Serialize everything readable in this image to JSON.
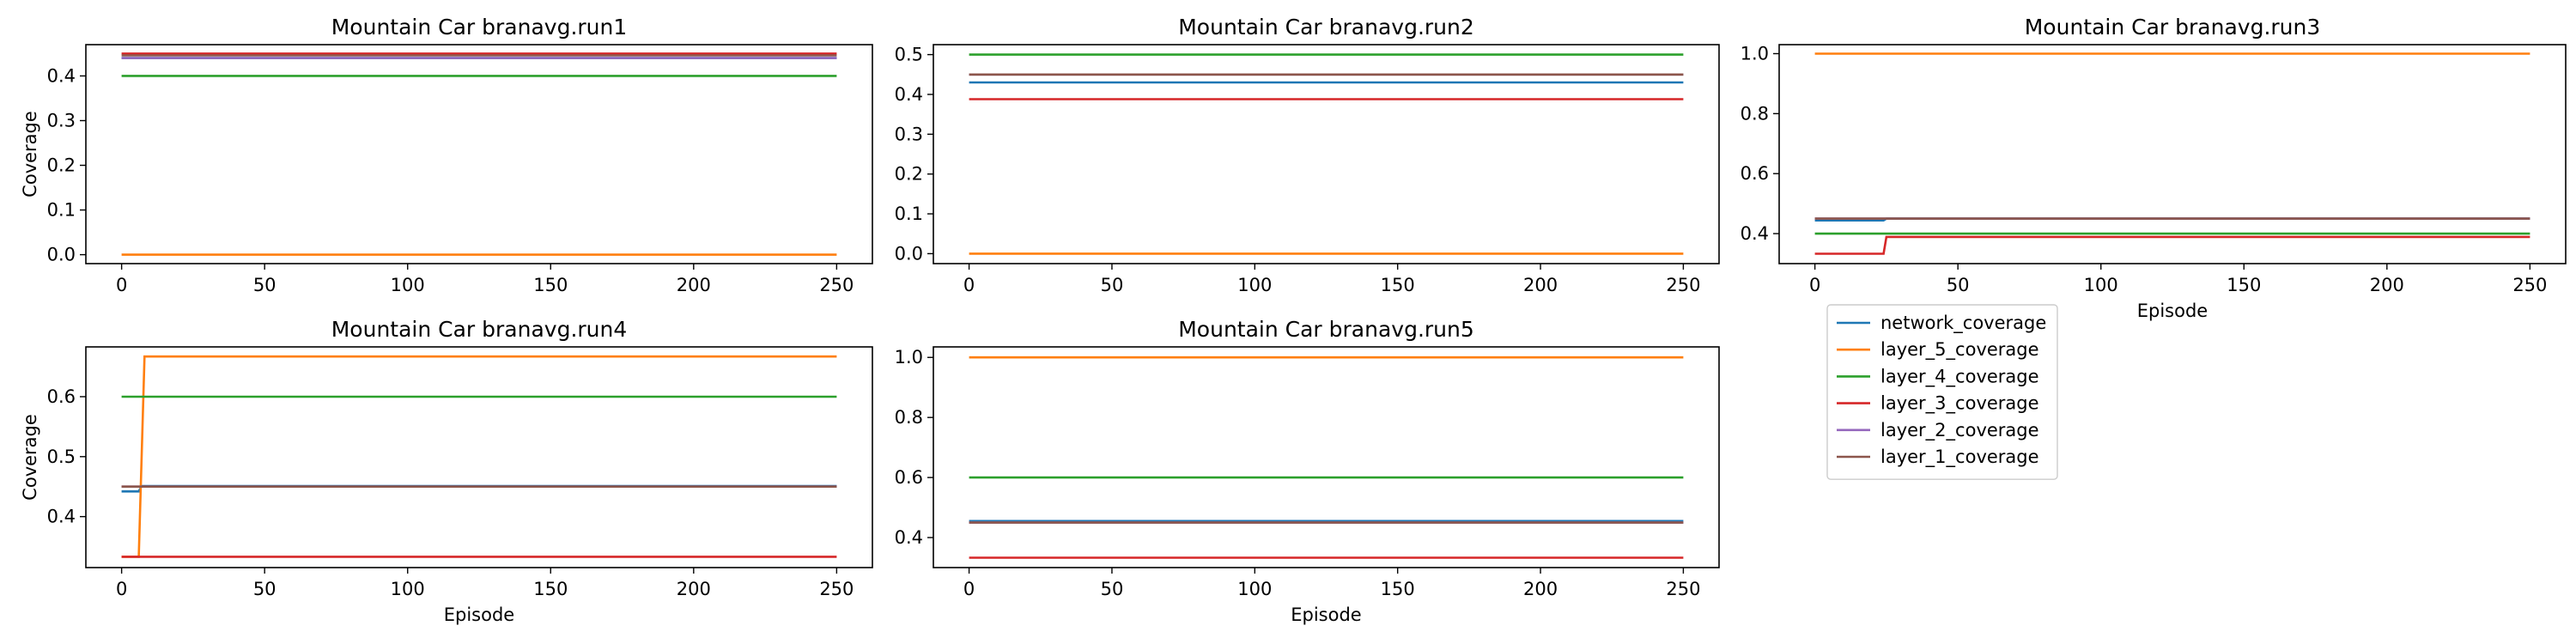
{
  "chart_data": [
    {
      "type": "line",
      "title": "Mountain Car branavg.run1",
      "xlabel": "",
      "ylabel": "Coverage",
      "xlim": [
        -12.5,
        262.5
      ],
      "ylim": [
        -0.02,
        0.47
      ],
      "xticks": [
        0,
        50,
        100,
        150,
        200,
        250
      ],
      "yticks": [
        0.0,
        0.1,
        0.2,
        0.3,
        0.4
      ],
      "series": [
        {
          "name": "network_coverage",
          "points": [
            [
              0,
              0.44
            ],
            [
              250,
              0.44
            ]
          ]
        },
        {
          "name": "layer_5_coverage",
          "points": [
            [
              0,
              0.0
            ],
            [
              250,
              0.0
            ]
          ]
        },
        {
          "name": "layer_4_coverage",
          "points": [
            [
              0,
              0.4
            ],
            [
              250,
              0.4
            ]
          ]
        },
        {
          "name": "layer_3_coverage",
          "points": [
            [
              0,
              0.45
            ],
            [
              250,
              0.45
            ]
          ]
        },
        {
          "name": "layer_2_coverage",
          "points": [
            [
              0,
              0.44
            ],
            [
              250,
              0.44
            ]
          ]
        },
        {
          "name": "layer_1_coverage",
          "points": [
            [
              0,
              0.446
            ],
            [
              250,
              0.446
            ]
          ]
        }
      ]
    },
    {
      "type": "line",
      "title": "Mountain Car branavg.run2",
      "xlabel": "",
      "ylabel": "",
      "xlim": [
        -12.5,
        262.5
      ],
      "ylim": [
        -0.025,
        0.525
      ],
      "xticks": [
        0,
        50,
        100,
        150,
        200,
        250
      ],
      "yticks": [
        0.0,
        0.1,
        0.2,
        0.3,
        0.4,
        0.5
      ],
      "series": [
        {
          "name": "network_coverage",
          "points": [
            [
              0,
              0.43
            ],
            [
              250,
              0.43
            ]
          ]
        },
        {
          "name": "layer_5_coverage",
          "points": [
            [
              0,
              0.0
            ],
            [
              250,
              0.0
            ]
          ]
        },
        {
          "name": "layer_4_coverage",
          "points": [
            [
              0,
              0.5
            ],
            [
              250,
              0.5
            ]
          ]
        },
        {
          "name": "layer_3_coverage",
          "points": [
            [
              0,
              0.388
            ],
            [
              250,
              0.388
            ]
          ]
        },
        {
          "name": "layer_2_coverage",
          "points": [
            [
              0,
              0.45
            ],
            [
              250,
              0.45
            ]
          ]
        },
        {
          "name": "layer_1_coverage",
          "points": [
            [
              0,
              0.45
            ],
            [
              250,
              0.45
            ]
          ]
        }
      ]
    },
    {
      "type": "line",
      "title": "Mountain Car branavg.run3",
      "xlabel": "Episode",
      "ylabel": "",
      "xlim": [
        -12.5,
        262.5
      ],
      "ylim": [
        0.3,
        1.03
      ],
      "xticks": [
        0,
        50,
        100,
        150,
        200,
        250
      ],
      "yticks": [
        0.4,
        0.6,
        0.8,
        1.0
      ],
      "series": [
        {
          "name": "network_coverage",
          "points": [
            [
              0,
              0.444
            ],
            [
              24,
              0.444
            ],
            [
              25,
              0.45
            ],
            [
              250,
              0.45
            ]
          ]
        },
        {
          "name": "layer_5_coverage",
          "points": [
            [
              0,
              1.0
            ],
            [
              250,
              1.0
            ]
          ]
        },
        {
          "name": "layer_4_coverage",
          "points": [
            [
              0,
              0.4
            ],
            [
              250,
              0.4
            ]
          ]
        },
        {
          "name": "layer_3_coverage",
          "points": [
            [
              0,
              0.333
            ],
            [
              24,
              0.333
            ],
            [
              25,
              0.389
            ],
            [
              250,
              0.389
            ]
          ]
        },
        {
          "name": "layer_2_coverage",
          "points": [
            [
              0,
              0.45
            ],
            [
              250,
              0.45
            ]
          ]
        },
        {
          "name": "layer_1_coverage",
          "points": [
            [
              0,
              0.45
            ],
            [
              250,
              0.45
            ]
          ]
        }
      ]
    },
    {
      "type": "line",
      "title": "Mountain Car branavg.run4",
      "xlabel": "Episode",
      "ylabel": "Coverage",
      "xlim": [
        -12.5,
        262.5
      ],
      "ylim": [
        0.315,
        0.683
      ],
      "xticks": [
        0,
        50,
        100,
        150,
        200,
        250
      ],
      "yticks": [
        0.4,
        0.5,
        0.6
      ],
      "series": [
        {
          "name": "network_coverage",
          "points": [
            [
              0,
              0.442
            ],
            [
              6,
              0.442
            ],
            [
              7,
              0.451
            ],
            [
              250,
              0.451
            ]
          ]
        },
        {
          "name": "layer_5_coverage",
          "points": [
            [
              0,
              0.333
            ],
            [
              6,
              0.333
            ],
            [
              8,
              0.667
            ],
            [
              250,
              0.667
            ]
          ]
        },
        {
          "name": "layer_4_coverage",
          "points": [
            [
              0,
              0.6
            ],
            [
              250,
              0.6
            ]
          ]
        },
        {
          "name": "layer_3_coverage",
          "points": [
            [
              0,
              0.333
            ],
            [
              250,
              0.333
            ]
          ]
        },
        {
          "name": "layer_2_coverage",
          "points": [
            [
              0,
              0.45
            ],
            [
              250,
              0.45
            ]
          ]
        },
        {
          "name": "layer_1_coverage",
          "points": [
            [
              0,
              0.45
            ],
            [
              250,
              0.45
            ]
          ]
        }
      ]
    },
    {
      "type": "line",
      "title": "Mountain Car branavg.run5",
      "xlabel": "Episode",
      "ylabel": "",
      "xlim": [
        -12.5,
        262.5
      ],
      "ylim": [
        0.3,
        1.035
      ],
      "xticks": [
        0,
        50,
        100,
        150,
        200,
        250
      ],
      "yticks": [
        0.4,
        0.6,
        0.8,
        1.0
      ],
      "series": [
        {
          "name": "network_coverage",
          "points": [
            [
              0,
              0.455
            ],
            [
              250,
              0.455
            ]
          ]
        },
        {
          "name": "layer_5_coverage",
          "points": [
            [
              0,
              1.0
            ],
            [
              250,
              1.0
            ]
          ]
        },
        {
          "name": "layer_4_coverage",
          "points": [
            [
              0,
              0.6
            ],
            [
              250,
              0.6
            ]
          ]
        },
        {
          "name": "layer_3_coverage",
          "points": [
            [
              0,
              0.333
            ],
            [
              250,
              0.333
            ]
          ]
        },
        {
          "name": "layer_2_coverage",
          "points": [
            [
              0,
              0.45
            ],
            [
              250,
              0.45
            ]
          ]
        },
        {
          "name": "layer_1_coverage",
          "points": [
            [
              0,
              0.45
            ],
            [
              250,
              0.45
            ]
          ]
        }
      ]
    }
  ],
  "legend": {
    "placement": "below right of the top-right subplot",
    "entries": [
      {
        "name": "network_coverage",
        "color": "#1f77b4"
      },
      {
        "name": "layer_5_coverage",
        "color": "#ff7f0e"
      },
      {
        "name": "layer_4_coverage",
        "color": "#2ca02c"
      },
      {
        "name": "layer_3_coverage",
        "color": "#d62728"
      },
      {
        "name": "layer_2_coverage",
        "color": "#9467bd"
      },
      {
        "name": "layer_1_coverage",
        "color": "#8c564b"
      }
    ]
  },
  "colors": {
    "network_coverage": "#1f77b4",
    "layer_5_coverage": "#ff7f0e",
    "layer_4_coverage": "#2ca02c",
    "layer_3_coverage": "#d62728",
    "layer_2_coverage": "#9467bd",
    "layer_1_coverage": "#8c564b"
  }
}
